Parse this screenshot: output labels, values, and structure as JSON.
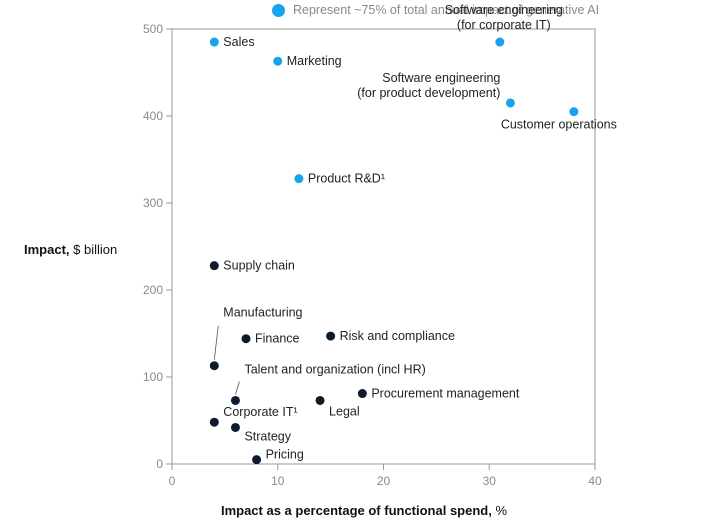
{
  "chart_data": {
    "type": "scatter",
    "title": "",
    "legend": {
      "label": "Represent ~75% of total annual impact of generative AI",
      "color": "#1aa3ec",
      "position": "top"
    },
    "xlabel": {
      "bold": "Impact as a percentage of functional spend,",
      "rest": " %"
    },
    "ylabel": {
      "bold": "Impact,",
      "rest": " $ billion"
    },
    "xlim": [
      0,
      40
    ],
    "ylim": [
      0,
      500
    ],
    "xticks": [
      "0",
      "10",
      "20",
      "30",
      "40"
    ],
    "yticks": [
      "0",
      "100",
      "200",
      "300",
      "400",
      "500"
    ],
    "grid": false,
    "colors": {
      "highlight": "#1aa3ec",
      "other": "#0d1b2e",
      "axis": "#9a9a9a",
      "leader": "#555555"
    },
    "points": [
      {
        "label": [
          "Sales"
        ],
        "x": 4,
        "y": 485,
        "highlight": true
      },
      {
        "label": [
          "Marketing"
        ],
        "x": 10,
        "y": 463,
        "highlight": true
      },
      {
        "label": [
          "Software engineering",
          "(for corporate IT)"
        ],
        "x": 31,
        "y": 485,
        "highlight": true
      },
      {
        "label": [
          "Software engineering",
          "(for product development)"
        ],
        "x": 32,
        "y": 415,
        "highlight": true
      },
      {
        "label": [
          "Customer operations"
        ],
        "x": 38,
        "y": 405,
        "highlight": true
      },
      {
        "label": [
          "Product R&D¹"
        ],
        "x": 12,
        "y": 328,
        "highlight": true
      },
      {
        "label": [
          "Supply chain"
        ],
        "x": 4,
        "y": 228,
        "highlight": false
      },
      {
        "label": [
          "Manufacturing"
        ],
        "x": 4,
        "y": 113,
        "highlight": false
      },
      {
        "label": [
          "Finance"
        ],
        "x": 7,
        "y": 144,
        "highlight": false
      },
      {
        "label": [
          "Risk and compliance"
        ],
        "x": 15,
        "y": 147,
        "highlight": false
      },
      {
        "label": [
          "Talent and organization (incl HR)"
        ],
        "x": 6,
        "y": 73,
        "highlight": false
      },
      {
        "label": [
          "Procurement management"
        ],
        "x": 18,
        "y": 81,
        "highlight": false
      },
      {
        "label": [
          "Legal"
        ],
        "x": 14,
        "y": 73,
        "highlight": false
      },
      {
        "label": [
          "Corporate IT¹"
        ],
        "x": 4,
        "y": 48,
        "highlight": false
      },
      {
        "label": [
          "Strategy"
        ],
        "x": 6,
        "y": 42,
        "highlight": false
      },
      {
        "label": [
          "Pricing"
        ],
        "x": 8,
        "y": 5,
        "highlight": false
      }
    ]
  }
}
